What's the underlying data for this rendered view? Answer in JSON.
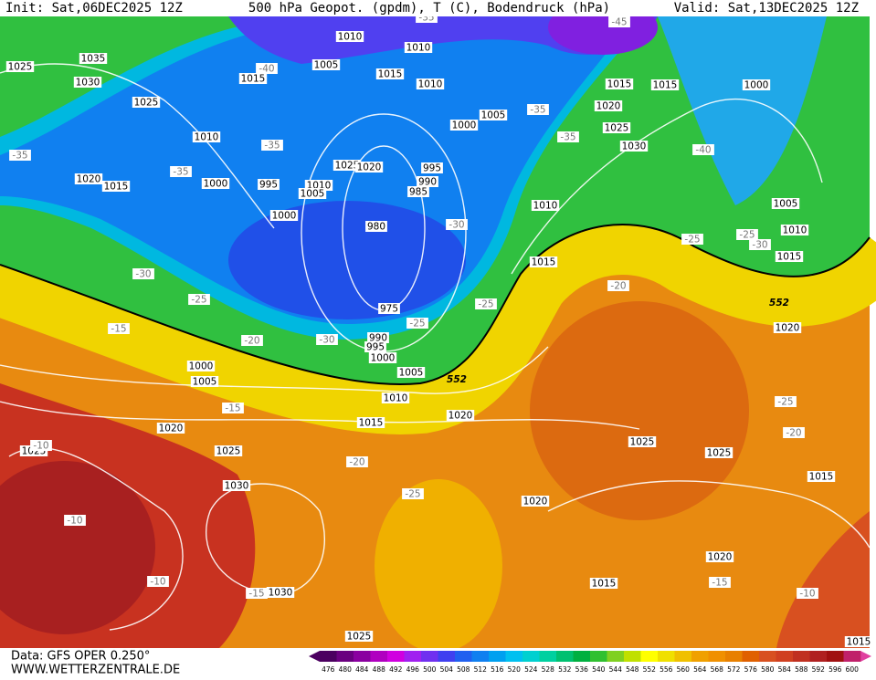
{
  "header": {
    "init": "Init: Sat,06DEC2025 12Z",
    "title": "500 hPa Geopot. (gpdm), T (C), Bodendruck (hPa)",
    "valid": "Valid: Sat,13DEC2025 12Z"
  },
  "footer": {
    "data": "Data: GFS OPER 0.250°",
    "site": "WWW.WETTERZENTRALE.DE"
  },
  "map": {
    "pressure_labels": [
      "1010",
      "1010",
      "1025",
      "1035",
      "1005",
      "1015",
      "1030",
      "1015",
      "1010",
      "1025",
      "1015",
      "1015",
      "1000",
      "1020",
      "1005",
      "1000",
      "1025",
      "1010",
      "1030",
      "1025",
      "1020",
      "995",
      "990",
      "985",
      "1020",
      "1015",
      "1000",
      "995",
      "1010",
      "1005",
      "1005",
      "1010",
      "1000",
      "980",
      "1010",
      "1015",
      "1015",
      "975",
      "1020",
      "990",
      "995",
      "1000",
      "1000",
      "1005",
      "1005",
      "1010",
      "1020",
      "1015",
      "1020",
      "1025",
      "1025",
      "1025",
      "1025",
      "1015",
      "1030",
      "1020",
      "1020",
      "1015",
      "1030",
      "1025",
      "1015"
    ],
    "temperature_labels": [
      "-35",
      "-35",
      "-35",
      "-40",
      "-35",
      "-45",
      "-35",
      "-35",
      "-40",
      "-30",
      "-25",
      "-15",
      "-30",
      "-25",
      "-25",
      "-20",
      "-30",
      "-20",
      "-25",
      "-25",
      "-30",
      "-15",
      "-25",
      "-20",
      "-20",
      "-25",
      "-10",
      "-10",
      "-15",
      "-15",
      "-10",
      "-10"
    ],
    "height_labels": [
      "552",
      "552"
    ]
  },
  "colorbar": {
    "levels": [
      476,
      480,
      484,
      488,
      492,
      496,
      500,
      504,
      508,
      512,
      516,
      520,
      524,
      528,
      532,
      536,
      540,
      544,
      548,
      552,
      556,
      560,
      564,
      568,
      572,
      576,
      580,
      584,
      588,
      592,
      596,
      600
    ],
    "colors": [
      "#4b0060",
      "#6a0080",
      "#8a00a0",
      "#b000c0",
      "#d000e0",
      "#a020f0",
      "#7030f0",
      "#4040f0",
      "#2060f0",
      "#1080f0",
      "#00a0f0",
      "#00c0f0",
      "#00d0d0",
      "#00d0a0",
      "#00c070",
      "#00b040",
      "#30c030",
      "#80d020",
      "#c0e000",
      "#ffff00",
      "#f0e000",
      "#f0c000",
      "#f0a000",
      "#f09000",
      "#e88000",
      "#e06000",
      "#d85020",
      "#d04020",
      "#c03020",
      "#b02020",
      "#a01010",
      "#c0206a"
    ]
  }
}
